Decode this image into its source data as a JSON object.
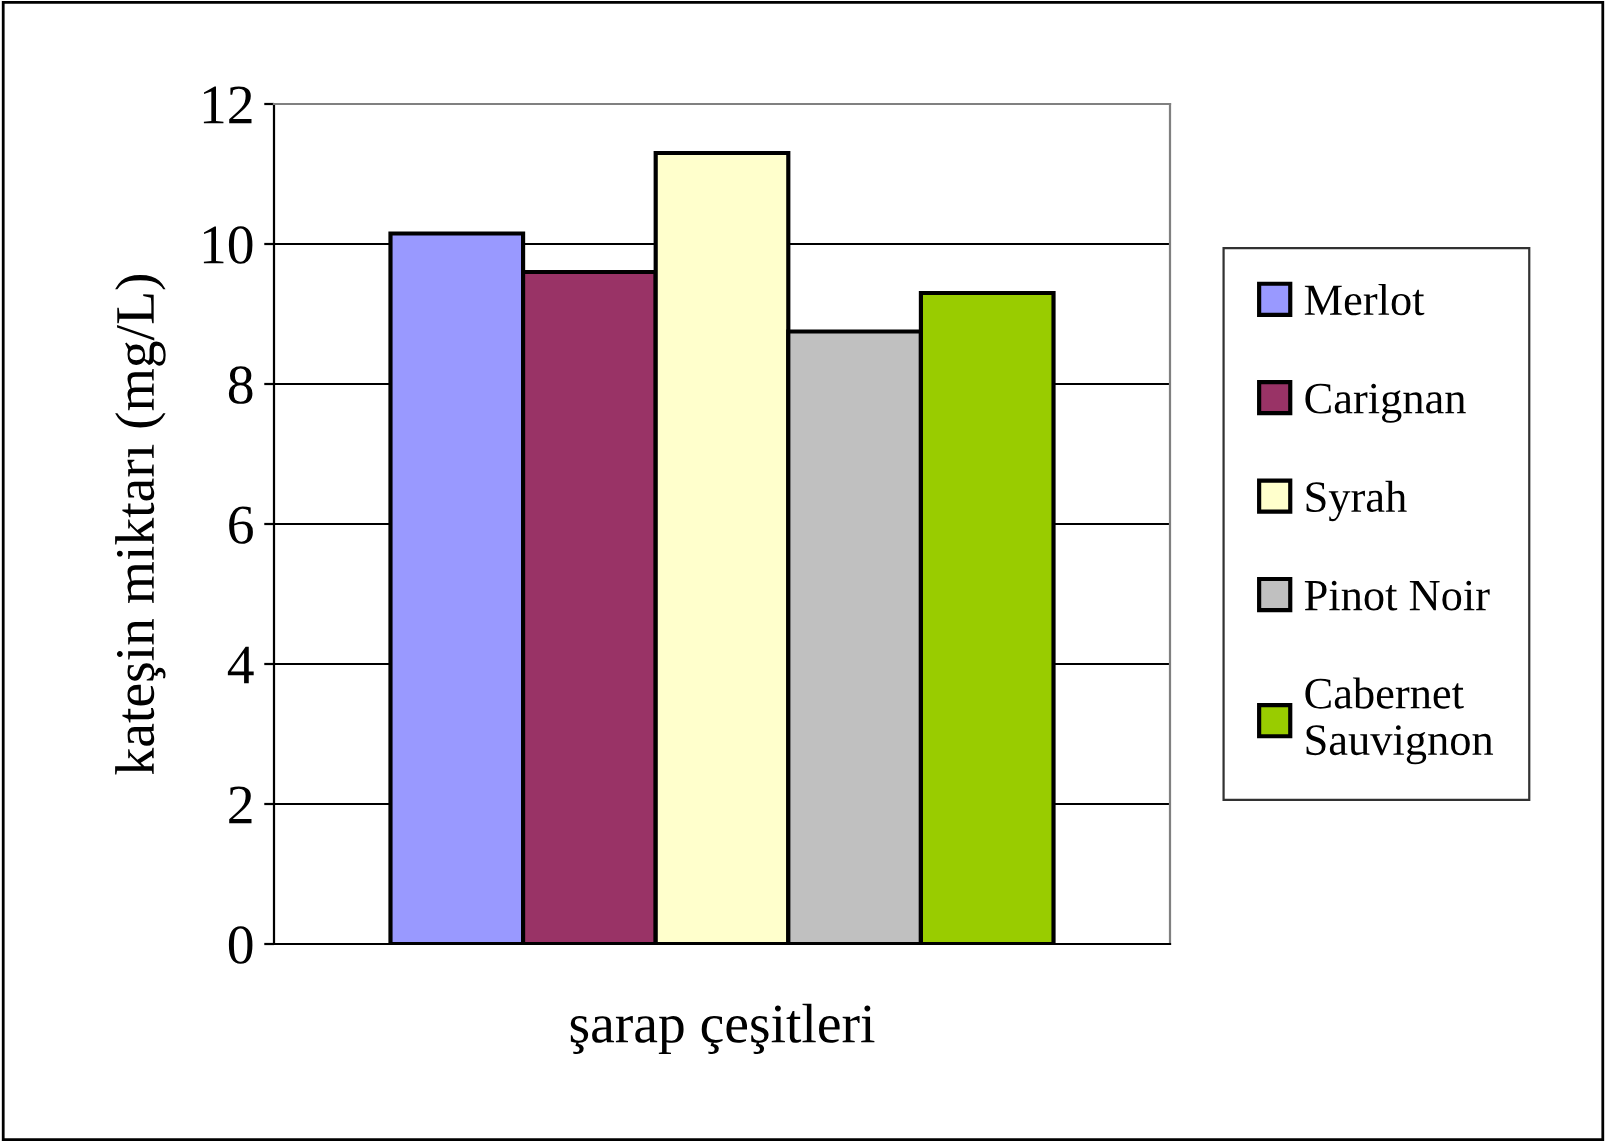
{
  "chart_data": {
    "type": "bar",
    "categories": [
      null
    ],
    "xlabel": "şarap çeşitleri",
    "ylabel": "kateşin miktarı (mg/L)",
    "series": [
      {
        "name": "Merlot",
        "color": "#9999ff",
        "values": [
          10.15
        ]
      },
      {
        "name": "Carignan",
        "color": "#993366",
        "values": [
          9.6
        ]
      },
      {
        "name": "Syrah",
        "color": "#ffffcc",
        "values": [
          11.3
        ]
      },
      {
        "name": "Pinot Noir",
        "color": "#c0c0c0",
        "values": [
          8.75
        ]
      },
      {
        "name": "Cabernet\nSauvignon",
        "color": "#99cc00",
        "values": [
          9.3
        ]
      }
    ],
    "ylim": [
      0,
      12
    ],
    "yticks": [
      0,
      2,
      4,
      6,
      8,
      10,
      12
    ],
    "grid": "y",
    "legend": "right"
  }
}
